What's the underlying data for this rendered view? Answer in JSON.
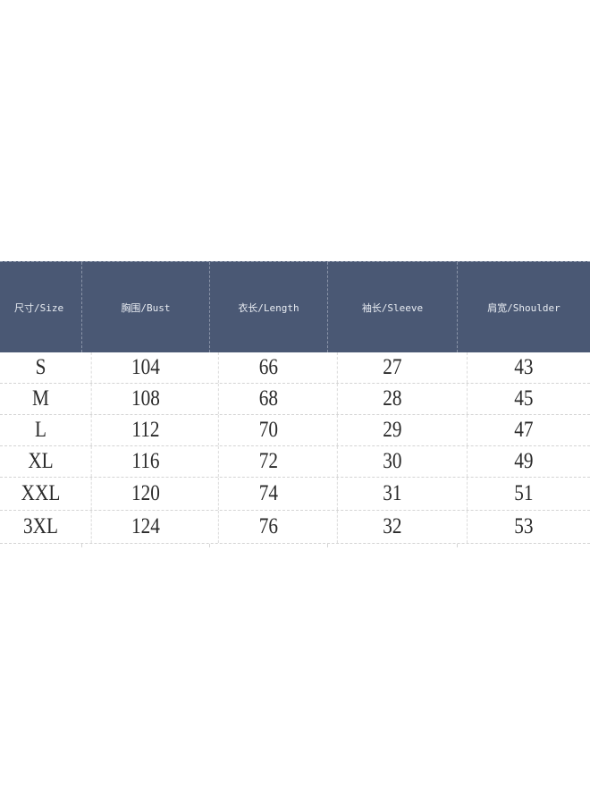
{
  "size_chart": {
    "header_color": "#4a5874",
    "headers": [
      "尺寸/Size",
      "胸围/Bust",
      "衣长/Length",
      "袖长/Sleeve",
      "肩宽/Shoulder"
    ],
    "rows": [
      [
        "S",
        "104",
        "66",
        "27",
        "43"
      ],
      [
        "M",
        "108",
        "68",
        "28",
        "45"
      ],
      [
        "L",
        "112",
        "70",
        "29",
        "47"
      ],
      [
        "XL",
        "116",
        "72",
        "30",
        "49"
      ],
      [
        "XXL",
        "120",
        "74",
        "31",
        "51"
      ],
      [
        "3XL",
        "124",
        "76",
        "32",
        "53"
      ]
    ]
  }
}
